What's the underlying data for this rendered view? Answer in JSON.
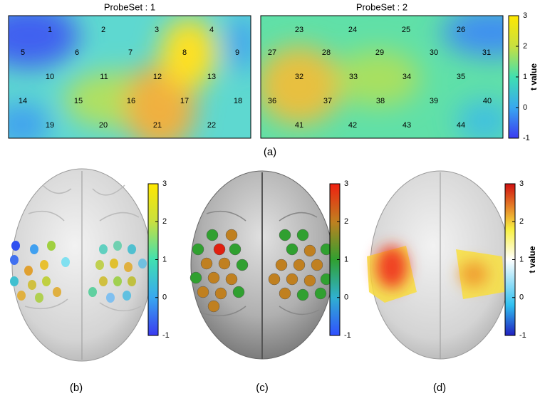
{
  "panel_a": {
    "maps": [
      {
        "title": "ProbeSet : 1",
        "probes": [
          "1",
          "2",
          "3",
          "4",
          "5",
          "6",
          "7",
          "8",
          "9",
          "10",
          "11",
          "12",
          "13",
          "14",
          "15",
          "16",
          "17",
          "18",
          "19",
          "20",
          "21",
          "22"
        ]
      },
      {
        "title": "ProbeSet : 2",
        "probes": [
          "23",
          "24",
          "25",
          "26",
          "27",
          "28",
          "29",
          "30",
          "31",
          "32",
          "33",
          "34",
          "35",
          "36",
          "37",
          "38",
          "39",
          "40",
          "41",
          "42",
          "43",
          "44"
        ]
      }
    ],
    "colorbar": {
      "label": "t value",
      "lim": [
        -1,
        3
      ],
      "ticks": [
        -1,
        0,
        1,
        2,
        3
      ]
    },
    "caption": "(a)"
  },
  "panel_b": {
    "colorbar": {
      "lim": [
        -1,
        3
      ],
      "ticks": [
        -1,
        0,
        1,
        2,
        3
      ]
    },
    "caption": "(b)"
  },
  "panel_c": {
    "colorbar": {
      "lim": [
        -1,
        3
      ],
      "ticks": [
        -1,
        0,
        1,
        2,
        3
      ]
    },
    "caption": "(c)"
  },
  "panel_d": {
    "colorbar": {
      "label": "t value",
      "lim": [
        -1,
        3
      ],
      "ticks": [
        -1,
        0,
        1,
        2,
        3
      ]
    },
    "caption": "(d)"
  }
}
